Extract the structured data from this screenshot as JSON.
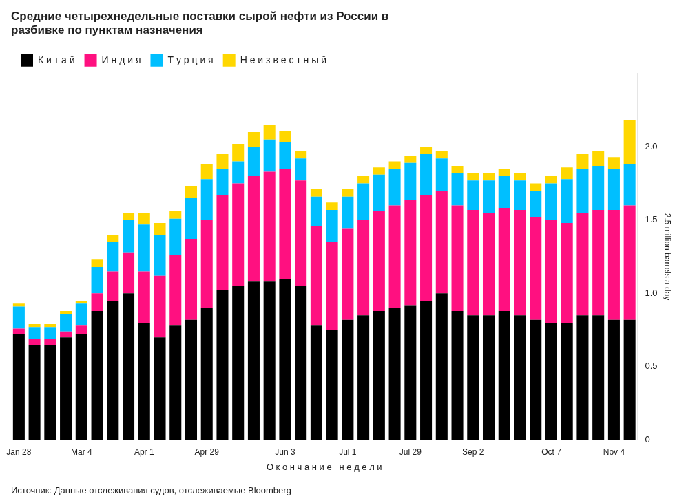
{
  "chart_data": {
    "type": "bar",
    "stacked": true,
    "title": [
      "Средние четырехнедельные поставки сырой нефти из России в",
      "разбивке по пунктам назначения"
    ],
    "xlabel": "О к о н ч а н и е   н е д е л и",
    "ylabel": "2.5 million barrels a day",
    "source": "Источник: Данные отслеживания судов, отслеживаемые Bloomberg",
    "categories": [
      "Jan 28",
      null,
      null,
      null,
      "Mar 4",
      null,
      null,
      null,
      "Apr 1",
      null,
      null,
      null,
      "Apr 29",
      null,
      null,
      null,
      null,
      "Jun 3",
      null,
      null,
      null,
      "Jul 1",
      null,
      null,
      null,
      "Jul 29",
      null,
      null,
      null,
      "Sep 2",
      null,
      null,
      null,
      null,
      "Oct 7",
      null,
      null,
      null,
      "Nov 4",
      null
    ],
    "series": [
      {
        "name": "К и т а й",
        "color": "#000000",
        "values": [
          0.72,
          0.65,
          0.65,
          0.7,
          0.72,
          0.88,
          0.95,
          1.0,
          0.8,
          0.7,
          0.78,
          0.82,
          0.9,
          1.02,
          1.05,
          1.08,
          1.08,
          1.1,
          1.05,
          0.78,
          0.75,
          0.82,
          0.85,
          0.88,
          0.9,
          0.92,
          0.95,
          1.0,
          0.88,
          0.85,
          0.85,
          0.88,
          0.85,
          0.82,
          0.8,
          0.8,
          0.85,
          0.85,
          0.82,
          0.82
        ]
      },
      {
        "name": "И н д и я",
        "color": "#FF1080",
        "values": [
          0.04,
          0.04,
          0.04,
          0.04,
          0.06,
          0.12,
          0.2,
          0.28,
          0.35,
          0.42,
          0.48,
          0.55,
          0.6,
          0.65,
          0.7,
          0.72,
          0.75,
          0.75,
          0.72,
          0.68,
          0.6,
          0.62,
          0.65,
          0.68,
          0.7,
          0.72,
          0.72,
          0.7,
          0.72,
          0.72,
          0.7,
          0.7,
          0.72,
          0.7,
          0.7,
          0.68,
          0.7,
          0.72,
          0.75,
          0.78
        ]
      },
      {
        "name": "Т у р ц и я",
        "color": "#00BFFF",
        "values": [
          0.15,
          0.08,
          0.08,
          0.12,
          0.15,
          0.18,
          0.2,
          0.22,
          0.32,
          0.28,
          0.25,
          0.28,
          0.28,
          0.18,
          0.15,
          0.2,
          0.22,
          0.18,
          0.15,
          0.2,
          0.22,
          0.22,
          0.25,
          0.25,
          0.25,
          0.25,
          0.28,
          0.22,
          0.22,
          0.2,
          0.22,
          0.22,
          0.2,
          0.18,
          0.25,
          0.3,
          0.3,
          0.3,
          0.28,
          0.28
        ]
      },
      {
        "name": "Н е и з в е с т н ы й",
        "color": "#FFD700",
        "values": [
          0.02,
          0.02,
          0.02,
          0.02,
          0.02,
          0.05,
          0.05,
          0.05,
          0.08,
          0.08,
          0.05,
          0.08,
          0.1,
          0.1,
          0.12,
          0.1,
          0.1,
          0.08,
          0.05,
          0.05,
          0.05,
          0.05,
          0.05,
          0.05,
          0.05,
          0.05,
          0.05,
          0.05,
          0.05,
          0.05,
          0.05,
          0.05,
          0.05,
          0.05,
          0.05,
          0.08,
          0.1,
          0.1,
          0.08,
          0.3
        ]
      }
    ],
    "ylim": [
      0,
      2.5
    ],
    "yticks": [
      0,
      0.5,
      {
        "value": 1.0,
        "label": "1.0"
      },
      1.5,
      {
        "value": 2.0,
        "label": "2.0"
      }
    ],
    "grid": false,
    "legend": "top"
  }
}
